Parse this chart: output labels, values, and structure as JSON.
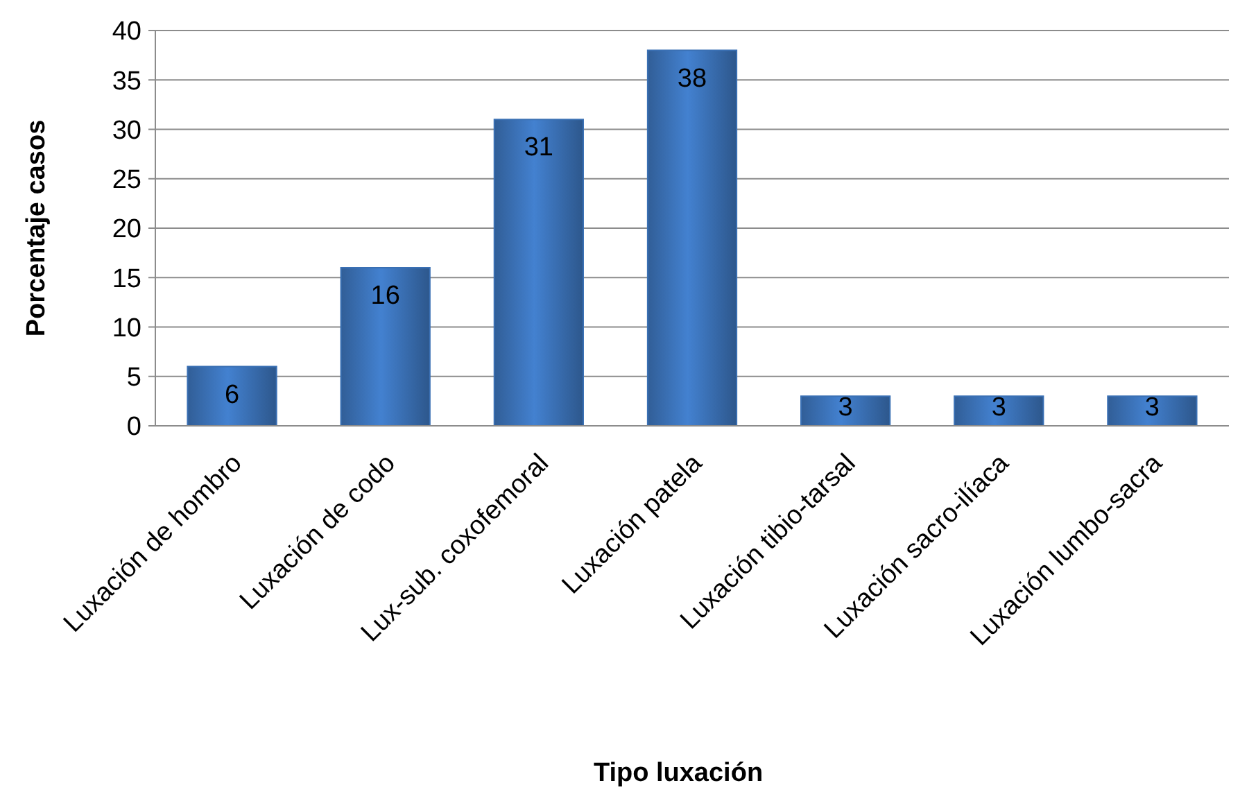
{
  "chart_data": {
    "type": "bar",
    "xlabel": "Tipo luxación",
    "ylabel": "Porcentaje casos",
    "categories": [
      "Luxación de hombro",
      "Luxación de codo",
      "Lux-sub. coxofemoral",
      "Luxación patela",
      "Luxación tibio-tarsal",
      "Luxación sacro-ilíaca",
      "Luxación lumbo-sacra"
    ],
    "values": [
      6,
      16,
      31,
      38,
      3,
      3,
      3
    ],
    "color": "#3a70b4",
    "ylim": [
      0,
      40
    ],
    "yticks": [
      0,
      5,
      10,
      15,
      20,
      25,
      30,
      35,
      40
    ],
    "grid": "y",
    "data_labels": true
  }
}
